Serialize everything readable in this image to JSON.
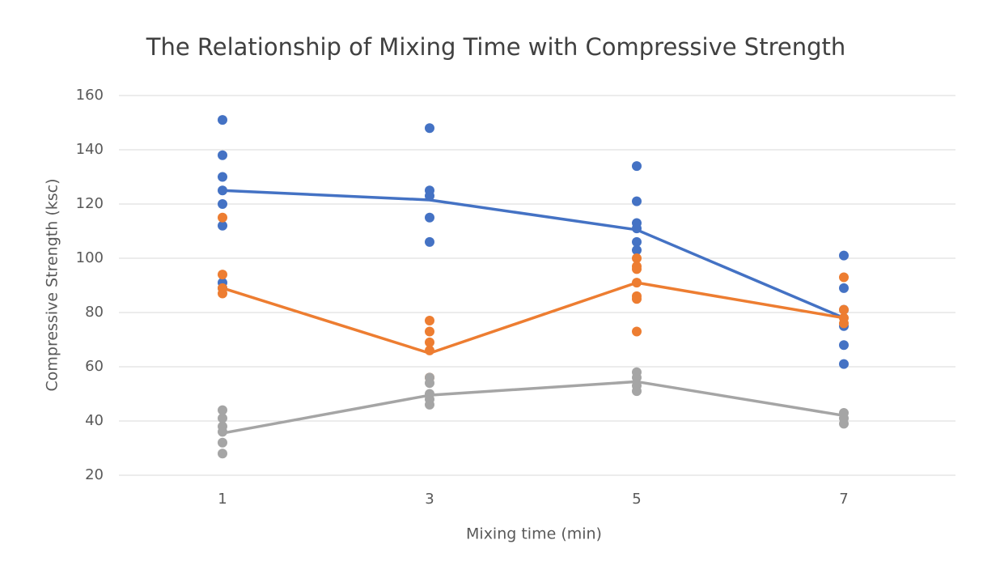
{
  "chart_data": {
    "type": "scatter",
    "title": "The Relationship of Mixing Time with Compressive Strength",
    "x_label": "Mixing time (min)",
    "y_label": "Compressive Strength (ksc)",
    "xlim": [
      0,
      8
    ],
    "xticks": [
      1,
      3,
      5,
      7
    ],
    "ylim": [
      20,
      160
    ],
    "yticks": [
      20,
      40,
      60,
      80,
      100,
      120,
      140,
      160
    ],
    "grid": true,
    "series": [
      {
        "mode": "markers",
        "color": "#4472c4",
        "x": [
          1,
          1,
          1,
          1,
          1,
          1,
          1,
          1,
          3,
          3,
          3,
          3,
          3,
          5,
          5,
          5,
          5,
          5,
          5,
          7,
          7,
          7,
          7,
          7,
          7
        ],
        "values": [
          151,
          138,
          130,
          125,
          120,
          112,
          91,
          89,
          148,
          125,
          123,
          115,
          106,
          134,
          121,
          113,
          111,
          106,
          103,
          101,
          89,
          81,
          75,
          68,
          61
        ]
      },
      {
        "mode": "markers",
        "color": "#ed7d31",
        "x": [
          1,
          1,
          1,
          1,
          3,
          3,
          3,
          3,
          3,
          5,
          5,
          5,
          5,
          5,
          5,
          5,
          7,
          7,
          7,
          7
        ],
        "values": [
          115,
          94,
          89,
          87,
          77,
          73,
          69,
          66,
          56,
          100,
          97,
          96,
          91,
          86,
          85,
          73,
          93,
          81,
          78,
          76
        ]
      },
      {
        "mode": "markers",
        "color": "#a5a5a5",
        "x": [
          1,
          1,
          1,
          1,
          1,
          1,
          3,
          3,
          3,
          3,
          3,
          5,
          5,
          5,
          5,
          7,
          7,
          7
        ],
        "values": [
          44,
          41,
          38,
          36,
          32,
          28,
          56,
          54,
          50,
          48,
          46,
          58,
          56,
          53,
          51,
          43,
          41,
          39
        ]
      },
      {
        "mode": "lines",
        "color": "#4472c4",
        "x": [
          1,
          3,
          5,
          7
        ],
        "values": [
          125,
          121.5,
          110.5,
          78
        ]
      },
      {
        "mode": "lines",
        "color": "#ed7d31",
        "x": [
          1,
          3,
          5,
          7
        ],
        "values": [
          89,
          65,
          91,
          78
        ]
      },
      {
        "mode": "lines",
        "color": "#a5a5a5",
        "x": [
          1,
          3,
          5,
          7
        ],
        "values": [
          35.5,
          49.5,
          54.5,
          42
        ]
      }
    ]
  }
}
